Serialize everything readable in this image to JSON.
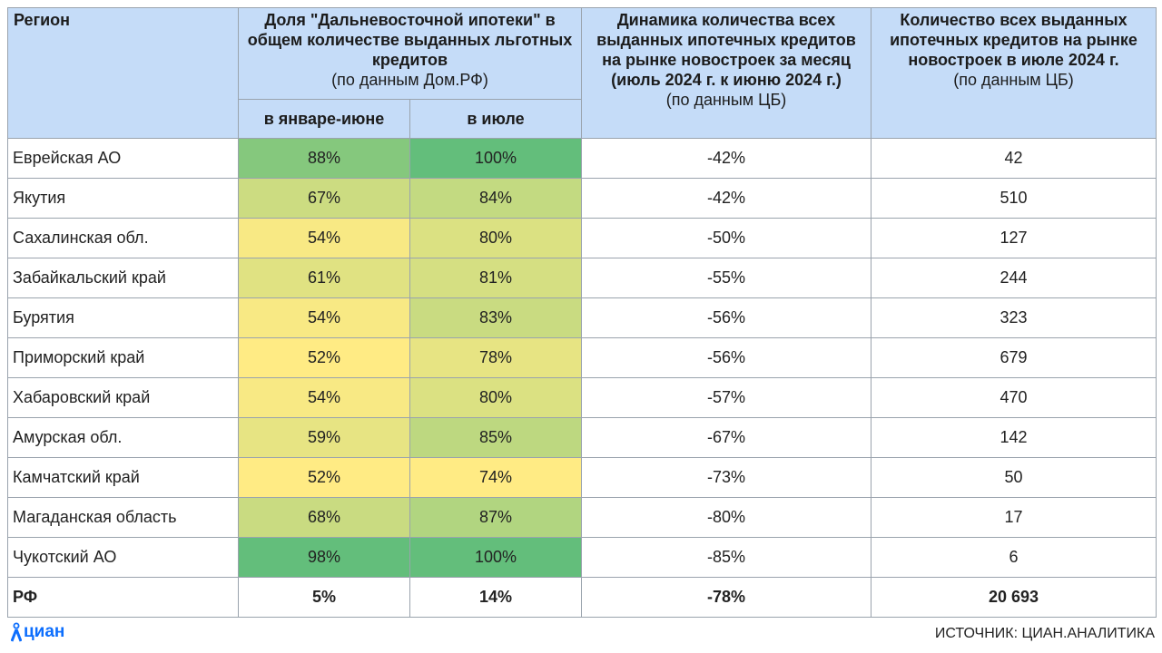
{
  "headers": {
    "region": "Регион",
    "share_title": "Доля \"Дальневосточной ипотеки\" в общем количестве выданных льготных кредитов",
    "share_source": "(по данным Дом.РФ)",
    "share_jan_jun": "в январе-июне",
    "share_july": "в июле",
    "dynamics_title": "Динамика количества всех выданных ипотечных кредитов на рынке новостроек за месяц (июль 2024 г. к июню 2024 г.)",
    "dynamics_source": "(по данным ЦБ)",
    "count_title": "Количество всех выданных ипотечных кредитов на рынке новостроек в июле 2024 г.",
    "count_source": "(по данным ЦБ)"
  },
  "rows": [
    {
      "region": "Еврейская АО",
      "jan_jun": "88%",
      "july": "100%",
      "dynamics": "-42%",
      "count": "42"
    },
    {
      "region": "Якутия",
      "jan_jun": "67%",
      "july": "84%",
      "dynamics": "-42%",
      "count": "510"
    },
    {
      "region": "Сахалинская обл.",
      "jan_jun": "54%",
      "july": "80%",
      "dynamics": "-50%",
      "count": "127"
    },
    {
      "region": "Забайкальский край",
      "jan_jun": "61%",
      "july": "81%",
      "dynamics": "-55%",
      "count": "244"
    },
    {
      "region": "Бурятия",
      "jan_jun": "54%",
      "july": "83%",
      "dynamics": "-56%",
      "count": "323"
    },
    {
      "region": "Приморский край",
      "jan_jun": "52%",
      "july": "78%",
      "dynamics": "-56%",
      "count": "679"
    },
    {
      "region": "Хабаровский край",
      "jan_jun": "54%",
      "july": "80%",
      "dynamics": "-57%",
      "count": "470"
    },
    {
      "region": "Амурская обл.",
      "jan_jun": "59%",
      "july": "85%",
      "dynamics": "-67%",
      "count": "142"
    },
    {
      "region": "Камчатский край",
      "jan_jun": "52%",
      "july": "74%",
      "dynamics": "-73%",
      "count": "50"
    },
    {
      "region": "Магаданская область",
      "jan_jun": "68%",
      "july": "87%",
      "dynamics": "-80%",
      "count": "17"
    },
    {
      "region": "Чукотский АО",
      "jan_jun": "98%",
      "july": "100%",
      "dynamics": "-85%",
      "count": "6"
    }
  ],
  "total": {
    "region": "РФ",
    "jan_jun": "5%",
    "july": "14%",
    "dynamics": "-78%",
    "count": "20 693"
  },
  "footer": {
    "logo": "циан",
    "source": "ИСТОЧНИК: ЦИАН.АНАЛИТИКА"
  },
  "colors": {
    "header": "#c5dcf8",
    "scale_low": "#ffeb84",
    "scale_high": "#63be7b",
    "logo": "#0d6efd"
  }
}
